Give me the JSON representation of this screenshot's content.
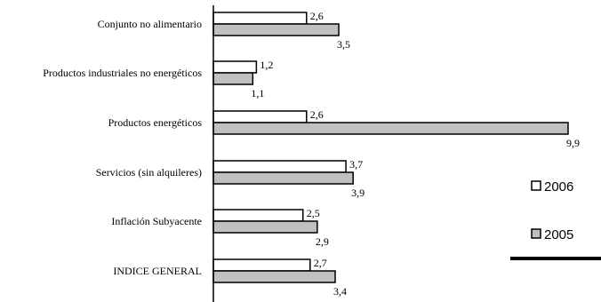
{
  "chart_data": {
    "type": "bar",
    "orientation": "horizontal",
    "categories": [
      "Conjunto no alimentario",
      "Productos industriales no energéticos",
      "Productos energéticos",
      "Servicios (sin alquileres)",
      "Inflación Subyacente",
      "INDICE GENERAL"
    ],
    "series": [
      {
        "name": "2006",
        "values": [
          2.6,
          1.2,
          2.6,
          3.7,
          2.5,
          2.7
        ],
        "labels": [
          "2,6",
          "1,2",
          "2,6",
          "3,7",
          "2,5",
          "2,7"
        ],
        "color": "#ffffff"
      },
      {
        "name": "2005",
        "values": [
          3.5,
          1.1,
          9.9,
          3.9,
          2.9,
          3.4
        ],
        "labels": [
          "3,5",
          "1,1",
          "9,9",
          "3,9",
          "2,9",
          "3,4"
        ],
        "color": "#c0c0c0"
      }
    ],
    "xlim": [
      0,
      10
    ],
    "grid": false,
    "legend_position": "right"
  }
}
